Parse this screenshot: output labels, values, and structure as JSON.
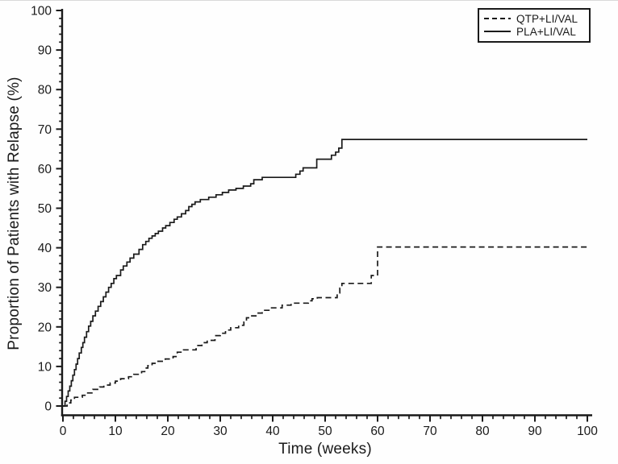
{
  "page": {
    "background": "#fefefe",
    "accent": "#1a1a1a"
  },
  "chart_data": {
    "type": "line",
    "subtype": "kaplan-meier-step",
    "title": "",
    "xlabel": "Time (weeks)",
    "ylabel": "Proportion of Patients with Relapse (%)",
    "xlim": [
      0,
      100
    ],
    "ylim": [
      0,
      100
    ],
    "x_major_ticks": [
      0,
      10,
      20,
      30,
      40,
      50,
      60,
      70,
      80,
      90,
      100
    ],
    "y_major_ticks": [
      0,
      10,
      20,
      30,
      40,
      50,
      60,
      70,
      80,
      90,
      100
    ],
    "minor_tick_step": 2,
    "grid": false,
    "legend_position": "top-right",
    "line_color": "#1a1a1a",
    "axis_color": "#1a1a1a",
    "series": [
      {
        "name": "QTP+LI/VAL",
        "line_style": "dashed",
        "final_value": 40.2,
        "step_points": [
          [
            0,
            0
          ],
          [
            0.8,
            0.8
          ],
          [
            1.5,
            1.5
          ],
          [
            2.2,
            2.2
          ],
          [
            3.7,
            2.7
          ],
          [
            4.5,
            3.3
          ],
          [
            5.7,
            4.2
          ],
          [
            7,
            4.8
          ],
          [
            7.8,
            5.3
          ],
          [
            9,
            5.8
          ],
          [
            10,
            6.3
          ],
          [
            11,
            6.9
          ],
          [
            12.5,
            7.4
          ],
          [
            13.5,
            8
          ],
          [
            15,
            8.7
          ],
          [
            15.6,
            9.6
          ],
          [
            16.2,
            10.2
          ],
          [
            17,
            10.8
          ],
          [
            18,
            11.3
          ],
          [
            19.5,
            11.9
          ],
          [
            21,
            12.5
          ],
          [
            21.8,
            13.6
          ],
          [
            23,
            14.2
          ],
          [
            25.4,
            15.3
          ],
          [
            26.5,
            16
          ],
          [
            27.5,
            16.6
          ],
          [
            29,
            17.8
          ],
          [
            30,
            18.4
          ],
          [
            31,
            19.2
          ],
          [
            32,
            19.8
          ],
          [
            33.5,
            20.4
          ],
          [
            34.5,
            21.2
          ],
          [
            35,
            22.3
          ],
          [
            36,
            22.8
          ],
          [
            36.8,
            23.5
          ],
          [
            38,
            24.2
          ],
          [
            39.5,
            24.8
          ],
          [
            41.8,
            25.5
          ],
          [
            43.5,
            26
          ],
          [
            46.8,
            26.6
          ],
          [
            47.5,
            27.1
          ],
          [
            48.5,
            27.4
          ],
          [
            52.3,
            28.6
          ],
          [
            52.8,
            29.8
          ],
          [
            53.2,
            31
          ],
          [
            58.8,
            33
          ],
          [
            60,
            40.2
          ],
          [
            100,
            40.2
          ]
        ]
      },
      {
        "name": "PLA+LI/VAL",
        "line_style": "solid",
        "final_value": 67.4,
        "step_points": [
          [
            0,
            0
          ],
          [
            0.4,
            1.2
          ],
          [
            0.7,
            2.4
          ],
          [
            1,
            3.8
          ],
          [
            1.3,
            5
          ],
          [
            1.6,
            6.4
          ],
          [
            1.9,
            7.8
          ],
          [
            2.2,
            9.2
          ],
          [
            2.5,
            10.6
          ],
          [
            2.8,
            12
          ],
          [
            3.1,
            13.4
          ],
          [
            3.5,
            14.8
          ],
          [
            3.8,
            16
          ],
          [
            4.1,
            17.4
          ],
          [
            4.5,
            18.8
          ],
          [
            4.9,
            20.2
          ],
          [
            5.3,
            21.4
          ],
          [
            5.7,
            22.8
          ],
          [
            6.2,
            24
          ],
          [
            6.7,
            25.2
          ],
          [
            7.2,
            26.4
          ],
          [
            7.7,
            27.6
          ],
          [
            8.2,
            28.8
          ],
          [
            8.7,
            30
          ],
          [
            9.2,
            31
          ],
          [
            9.7,
            32.2
          ],
          [
            10.2,
            33
          ],
          [
            11,
            34.4
          ],
          [
            11.5,
            35.4
          ],
          [
            12.2,
            36.4
          ],
          [
            12.8,
            37.4
          ],
          [
            13.5,
            38.4
          ],
          [
            14.5,
            39.6
          ],
          [
            15.2,
            40.8
          ],
          [
            15.8,
            41.6
          ],
          [
            16.4,
            42.4
          ],
          [
            17,
            43
          ],
          [
            17.6,
            43.6
          ],
          [
            18.2,
            44.2
          ],
          [
            19,
            45
          ],
          [
            19.6,
            45.6
          ],
          [
            20.4,
            46.4
          ],
          [
            21.2,
            47.2
          ],
          [
            21.8,
            47.8
          ],
          [
            22.6,
            48.6
          ],
          [
            23.4,
            49.4
          ],
          [
            24,
            50.4
          ],
          [
            24.6,
            51
          ],
          [
            25.2,
            51.6
          ],
          [
            26.2,
            52.2
          ],
          [
            27.8,
            52.8
          ],
          [
            29.2,
            53.4
          ],
          [
            30.4,
            54
          ],
          [
            31.6,
            54.6
          ],
          [
            33,
            55
          ],
          [
            34.4,
            55.6
          ],
          [
            35.8,
            56.2
          ],
          [
            36.4,
            57.2
          ],
          [
            38,
            57.8
          ],
          [
            44.4,
            58.6
          ],
          [
            45.2,
            59.4
          ],
          [
            45.8,
            60.2
          ],
          [
            48.4,
            62.4
          ],
          [
            51.2,
            63.4
          ],
          [
            52,
            64.2
          ],
          [
            52.6,
            65.2
          ],
          [
            53.2,
            67.4
          ],
          [
            100,
            67.4
          ]
        ]
      }
    ]
  }
}
